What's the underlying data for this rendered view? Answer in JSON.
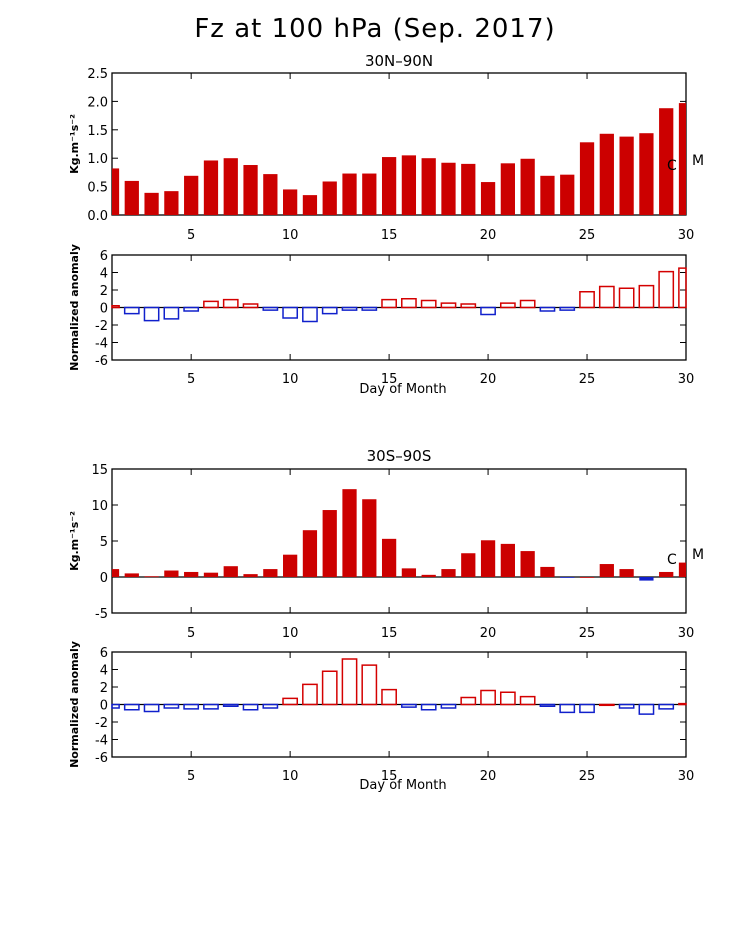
{
  "title": "Fz at 100 hPa (Sep. 2017)",
  "colors": {
    "fill": "#cc0000",
    "positive": "#d40000",
    "negative": "#1020cc",
    "axis": "#000000"
  },
  "chart_data": [
    {
      "type": "bar",
      "title": "30N–90N",
      "ylabel": "Kg.m⁻¹s⁻²",
      "ylim": [
        0,
        2.5
      ],
      "yticks": [
        "0.0",
        "0.5",
        "1.0",
        "1.5",
        "2.0",
        "2.5"
      ],
      "xlim": [
        1,
        30
      ],
      "xticks": [
        "5",
        "10",
        "15",
        "20",
        "25",
        "30"
      ],
      "markers": [
        "C",
        "M"
      ],
      "x": [
        1,
        2,
        3,
        4,
        5,
        6,
        7,
        8,
        9,
        10,
        11,
        12,
        13,
        14,
        15,
        16,
        17,
        18,
        19,
        20,
        21,
        22,
        23,
        24,
        25,
        26,
        27,
        28,
        29,
        30
      ],
      "values": [
        0.82,
        0.6,
        0.39,
        0.42,
        0.69,
        0.96,
        1.0,
        0.88,
        0.72,
        0.45,
        0.35,
        0.59,
        0.73,
        0.73,
        1.02,
        1.05,
        1.0,
        0.92,
        0.9,
        0.58,
        0.91,
        0.99,
        0.69,
        0.71,
        1.28,
        1.43,
        1.38,
        1.44,
        1.88,
        1.97
      ]
    },
    {
      "type": "bar",
      "title": "",
      "ylabel": "Normalized anomaly",
      "xlabel": "Day of Month",
      "ylim": [
        -6,
        6
      ],
      "yticks": [
        "-6",
        "-4",
        "-2",
        "0",
        "2",
        "4",
        "6"
      ],
      "xlim": [
        1,
        30
      ],
      "xticks": [
        "5",
        "10",
        "15",
        "20",
        "25",
        "30"
      ],
      "x": [
        1,
        2,
        3,
        4,
        5,
        6,
        7,
        8,
        9,
        10,
        11,
        12,
        13,
        14,
        15,
        16,
        17,
        18,
        19,
        20,
        21,
        22,
        23,
        24,
        25,
        26,
        27,
        28,
        29,
        30
      ],
      "values": [
        0.2,
        -0.7,
        -1.5,
        -1.3,
        -0.4,
        0.7,
        0.9,
        0.4,
        -0.3,
        -1.2,
        -1.6,
        -0.7,
        -0.3,
        -0.3,
        0.9,
        1.0,
        0.8,
        0.5,
        0.4,
        -0.8,
        0.5,
        0.8,
        -0.4,
        -0.3,
        1.8,
        2.4,
        2.2,
        2.5,
        4.1,
        4.5
      ]
    },
    {
      "type": "bar",
      "title": "30S–90S",
      "ylabel": "Kg.m⁻¹s⁻²",
      "ylim": [
        -5,
        15
      ],
      "yticks": [
        "-5",
        "0",
        "5",
        "10",
        "15"
      ],
      "xlim": [
        1,
        30
      ],
      "xticks": [
        "5",
        "10",
        "15",
        "20",
        "25",
        "30"
      ],
      "markers": [
        "C",
        "M"
      ],
      "x": [
        1,
        2,
        3,
        4,
        5,
        6,
        7,
        8,
        9,
        10,
        11,
        12,
        13,
        14,
        15,
        16,
        17,
        18,
        19,
        20,
        21,
        22,
        23,
        24,
        25,
        26,
        27,
        28,
        29,
        30
      ],
      "values": [
        1.1,
        0.5,
        0.1,
        0.9,
        0.7,
        0.6,
        1.5,
        0.4,
        1.1,
        3.1,
        6.5,
        9.3,
        12.2,
        10.8,
        5.3,
        1.2,
        0.3,
        1.1,
        3.3,
        5.1,
        4.6,
        3.6,
        1.4,
        -0.1,
        0.0,
        1.8,
        1.1,
        -0.5,
        0.7,
        2.0
      ]
    },
    {
      "type": "bar",
      "title": "",
      "ylabel": "Normalized anomaly",
      "xlabel": "Day of Month",
      "ylim": [
        -6,
        6
      ],
      "yticks": [
        "-6",
        "-4",
        "-2",
        "0",
        "2",
        "4",
        "6"
      ],
      "xlim": [
        1,
        30
      ],
      "xticks": [
        "5",
        "10",
        "15",
        "20",
        "25",
        "30"
      ],
      "x": [
        1,
        2,
        3,
        4,
        5,
        6,
        7,
        8,
        9,
        10,
        11,
        12,
        13,
        14,
        15,
        16,
        17,
        18,
        19,
        20,
        21,
        22,
        23,
        24,
        25,
        26,
        27,
        28,
        29,
        30
      ],
      "values": [
        -0.4,
        -0.6,
        -0.8,
        -0.4,
        -0.5,
        -0.5,
        -0.2,
        -0.6,
        -0.4,
        0.7,
        2.3,
        3.8,
        5.2,
        4.5,
        1.7,
        -0.3,
        -0.6,
        -0.4,
        0.8,
        1.6,
        1.4,
        0.9,
        -0.2,
        -0.9,
        -0.9,
        0.0,
        -0.4,
        -1.1,
        -0.5,
        0.1
      ]
    }
  ]
}
